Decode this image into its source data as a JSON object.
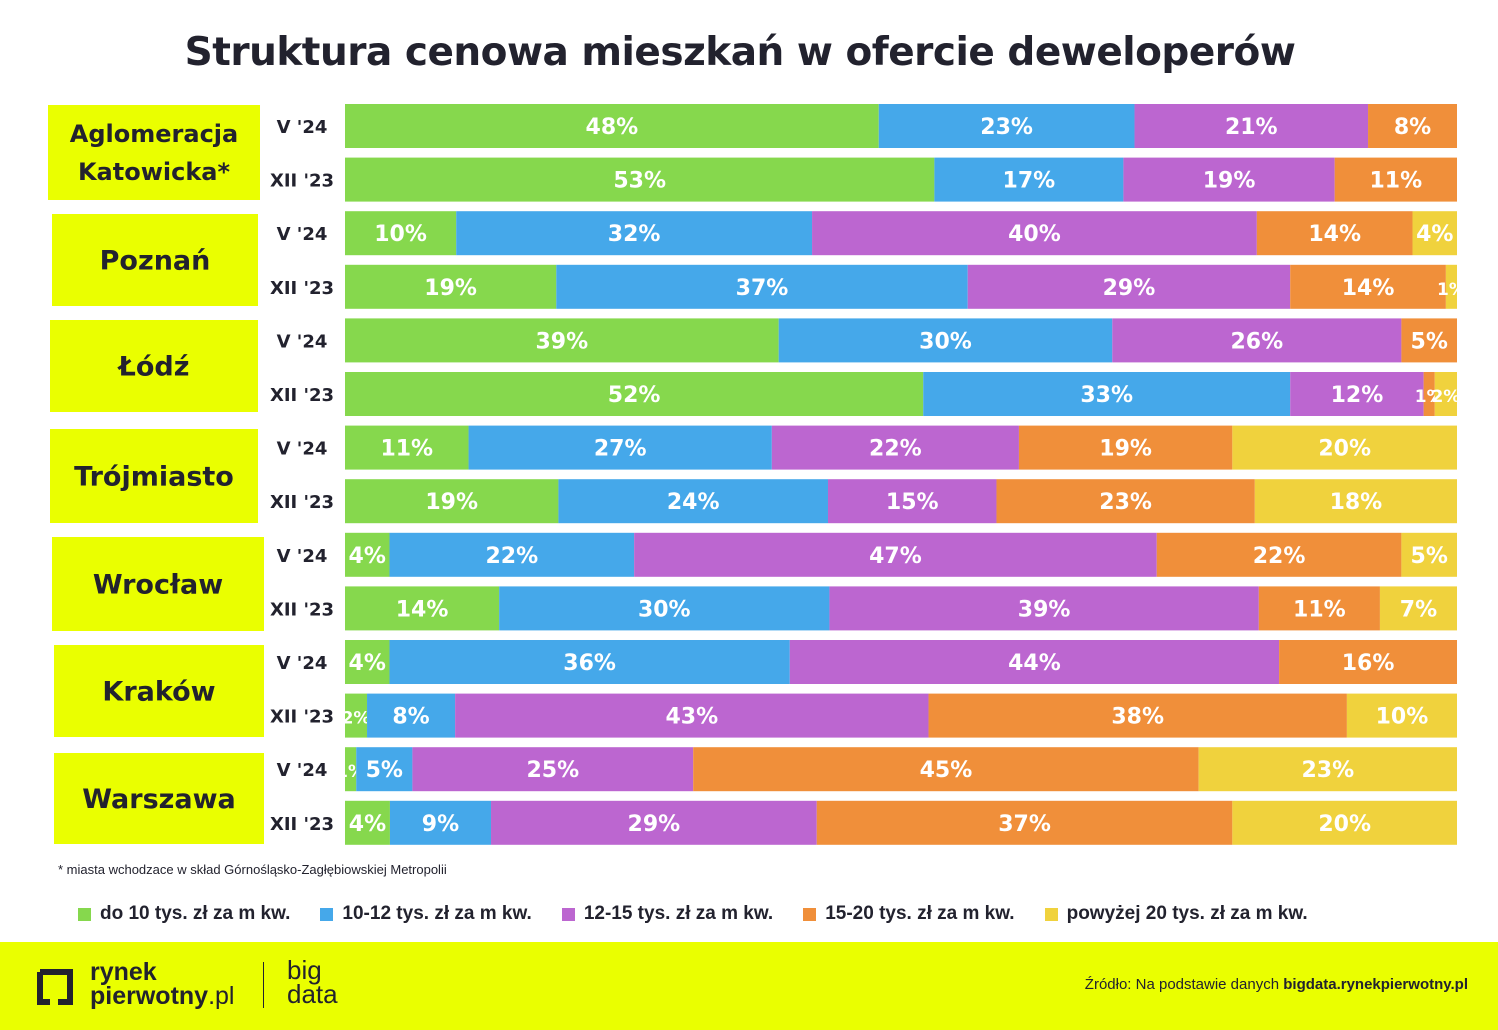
{
  "title": "Struktura cenowa mieszkań w ofercie deweloperów",
  "footnote": "* miasta wchodzace w skład Górnośląsko-Zagłębiowskiej Metropolii",
  "colors": {
    "label_box": "#eaff00",
    "series": [
      "#86d84d",
      "#45a8ea",
      "#bc66d0",
      "#f08f3a",
      "#f0d23d"
    ],
    "text_dark": "#22222e"
  },
  "chart_data": {
    "type": "bar",
    "orientation": "horizontal",
    "stacked": true,
    "unit": "%",
    "legend_position": "bottom",
    "series_names": [
      "do 10 tys. zł za m kw.",
      "10-12 tys. zł za m kw.",
      "12-15 tys. zł za m kw.",
      "15-20 tys. zł za m kw.",
      "powyżej 20 tys. zł za m kw."
    ],
    "groups": [
      {
        "name": "Aglomeracja Katowicka*",
        "name_lines": [
          "Aglomeracja",
          "Katowicka*"
        ],
        "bars": [
          {
            "period": "V '24",
            "values": [
              48,
              23,
              21,
              8,
              0
            ]
          },
          {
            "period": "XII '23",
            "values": [
              53,
              17,
              19,
              11,
              0
            ]
          }
        ]
      },
      {
        "name": "Poznań",
        "name_lines": [
          "Poznań"
        ],
        "bars": [
          {
            "period": "V '24",
            "values": [
              10,
              32,
              40,
              14,
              4
            ]
          },
          {
            "period": "XII '23",
            "values": [
              19,
              37,
              29,
              14,
              1
            ]
          }
        ]
      },
      {
        "name": "Łódź",
        "name_lines": [
          "Łódź"
        ],
        "bars": [
          {
            "period": "V '24",
            "values": [
              39,
              30,
              26,
              5,
              0
            ]
          },
          {
            "period": "XII '23",
            "values": [
              52,
              33,
              12,
              1,
              2
            ]
          }
        ]
      },
      {
        "name": "Trójmiasto",
        "name_lines": [
          "Trójmiasto"
        ],
        "bars": [
          {
            "period": "V '24",
            "values": [
              11,
              27,
              22,
              19,
              20
            ]
          },
          {
            "period": "XII '23",
            "values": [
              19,
              24,
              15,
              23,
              18
            ]
          }
        ]
      },
      {
        "name": "Wrocław",
        "name_lines": [
          "Wrocław"
        ],
        "bars": [
          {
            "period": "V '24",
            "values": [
              4,
              22,
              47,
              22,
              5
            ]
          },
          {
            "period": "XII '23",
            "values": [
              14,
              30,
              39,
              11,
              7
            ]
          }
        ]
      },
      {
        "name": "Kraków",
        "name_lines": [
          "Kraków"
        ],
        "bars": [
          {
            "period": "V '24",
            "values": [
              4,
              36,
              44,
              16,
              0
            ]
          },
          {
            "period": "XII '23",
            "values": [
              2,
              8,
              43,
              38,
              10
            ]
          }
        ]
      },
      {
        "name": "Warszawa",
        "name_lines": [
          "Warszawa"
        ],
        "bars": [
          {
            "period": "V '24",
            "values": [
              1,
              5,
              25,
              45,
              23
            ]
          },
          {
            "period": "XII '23",
            "values": [
              4,
              9,
              29,
              37,
              20
            ]
          }
        ]
      }
    ]
  },
  "footer": {
    "logo_line1": "rynek",
    "logo_line2_bold": "pierwotny",
    "logo_line2_suffix": ".pl",
    "big_line1": "big",
    "big_line2": "data",
    "source_prefix": "Źródło: Na podstawie danych",
    "source_link": "bigdata.rynekpierwotny.pl"
  }
}
